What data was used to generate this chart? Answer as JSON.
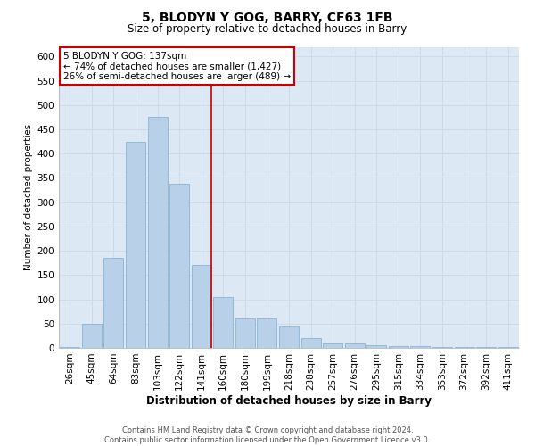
{
  "title": "5, BLODYN Y GOG, BARRY, CF63 1FB",
  "subtitle": "Size of property relative to detached houses in Barry",
  "xlabel": "Distribution of detached houses by size in Barry",
  "ylabel": "Number of detached properties",
  "annotation_line1": "5 BLODYN Y GOG: 137sqm",
  "annotation_line2": "← 74% of detached houses are smaller (1,427)",
  "annotation_line3": "26% of semi-detached houses are larger (489) →",
  "footer_line1": "Contains HM Land Registry data © Crown copyright and database right 2024.",
  "footer_line2": "Contains public sector information licensed under the Open Government Licence v3.0.",
  "categories": [
    "26sqm",
    "45sqm",
    "64sqm",
    "83sqm",
    "103sqm",
    "122sqm",
    "141sqm",
    "160sqm",
    "180sqm",
    "199sqm",
    "218sqm",
    "238sqm",
    "257sqm",
    "276sqm",
    "295sqm",
    "315sqm",
    "334sqm",
    "353sqm",
    "372sqm",
    "392sqm",
    "411sqm"
  ],
  "values": [
    2,
    50,
    185,
    425,
    475,
    338,
    170,
    105,
    60,
    60,
    45,
    20,
    10,
    10,
    5,
    4,
    3,
    1,
    1,
    1,
    1
  ],
  "bar_color": "#b8d0e8",
  "bar_edge_color": "#7aaed4",
  "grid_color": "#ccdaeb",
  "background_color": "#dce9f5",
  "red_line_color": "#cc0000",
  "annotation_box_color": "#cc0000",
  "ylim": [
    0,
    620
  ],
  "yticks": [
    0,
    50,
    100,
    150,
    200,
    250,
    300,
    350,
    400,
    450,
    500,
    550,
    600
  ],
  "title_fontsize": 10,
  "subtitle_fontsize": 8.5,
  "xlabel_fontsize": 8.5,
  "ylabel_fontsize": 7.5,
  "tick_fontsize": 7.5,
  "annot_fontsize": 7.5,
  "footer_fontsize": 6.0,
  "red_line_index": 6
}
